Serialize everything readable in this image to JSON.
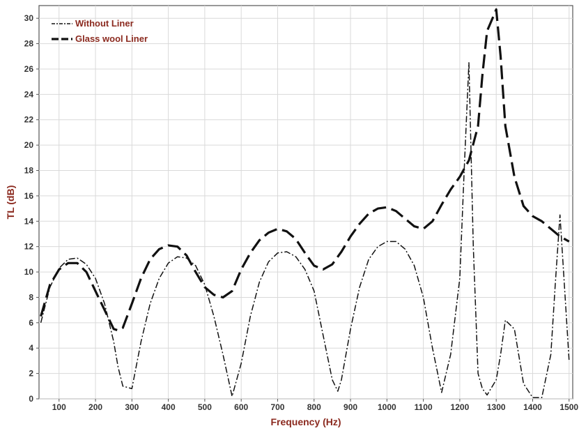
{
  "chart_data": {
    "type": "line",
    "title": "",
    "xlabel": "Frequency (Hz)",
    "ylabel": "TL (dB)",
    "xlim": [
      45,
      1510
    ],
    "ylim": [
      0,
      31
    ],
    "x_ticks": [
      100,
      200,
      300,
      400,
      500,
      600,
      700,
      800,
      900,
      1000,
      1100,
      1200,
      1300,
      1400,
      1500
    ],
    "y_ticks": [
      0,
      2,
      4,
      6,
      8,
      10,
      12,
      14,
      16,
      18,
      20,
      22,
      24,
      26,
      28,
      30
    ],
    "grid": true,
    "legend_position": "top-left",
    "series": [
      {
        "name": "Without Liner",
        "style": "dash-dot",
        "color": "#111111",
        "x": [
          50,
          75,
          100,
          125,
          150,
          175,
          200,
          225,
          250,
          262,
          275,
          300,
          325,
          350,
          375,
          400,
          425,
          450,
          475,
          500,
          525,
          550,
          575,
          600,
          625,
          650,
          675,
          700,
          725,
          750,
          775,
          800,
          825,
          850,
          865,
          875,
          900,
          925,
          950,
          975,
          1000,
          1025,
          1050,
          1075,
          1100,
          1125,
          1150,
          1175,
          1200,
          1212,
          1225,
          1237,
          1250,
          1262,
          1275,
          1300,
          1312,
          1325,
          1350,
          1375,
          1400,
          1425,
          1450,
          1462,
          1475,
          1487,
          1500
        ],
        "values": [
          6,
          8.8,
          10.3,
          11.0,
          11.1,
          10.6,
          9.5,
          7.5,
          4.5,
          2.5,
          1.0,
          0.8,
          4.5,
          7.5,
          9.5,
          10.7,
          11.2,
          11.1,
          10.5,
          9.0,
          6.5,
          3.5,
          0.2,
          2.8,
          6.5,
          9.2,
          10.8,
          11.5,
          11.6,
          11.2,
          10.2,
          8.5,
          5.0,
          1.5,
          0.6,
          1.5,
          5.5,
          8.8,
          11.0,
          12.0,
          12.4,
          12.4,
          11.8,
          10.5,
          8.0,
          4.0,
          0.5,
          3.5,
          9.5,
          18.0,
          26.5,
          12.0,
          2.0,
          0.8,
          0.3,
          1.5,
          3.5,
          6.2,
          5.5,
          1.2,
          0.1,
          0.1,
          3.5,
          9.0,
          14.5,
          9.0,
          3.0
        ]
      },
      {
        "name": "Glass wool Liner",
        "style": "long-dash",
        "color": "#111111",
        "x": [
          50,
          75,
          100,
          125,
          150,
          175,
          200,
          225,
          250,
          262,
          275,
          300,
          325,
          350,
          375,
          400,
          425,
          450,
          475,
          500,
          525,
          550,
          575,
          600,
          625,
          650,
          675,
          700,
          725,
          750,
          775,
          800,
          825,
          850,
          875,
          900,
          925,
          950,
          975,
          1000,
          1025,
          1050,
          1075,
          1100,
          1125,
          1150,
          1175,
          1200,
          1225,
          1250,
          1262,
          1275,
          1287,
          1300,
          1312,
          1325,
          1350,
          1375,
          1400,
          1425,
          1450,
          1475,
          1500
        ],
        "values": [
          6.5,
          9.0,
          10.2,
          10.7,
          10.7,
          10.0,
          8.5,
          7.0,
          5.5,
          5.4,
          5.6,
          7.5,
          9.5,
          11.0,
          11.8,
          12.1,
          12.0,
          11.3,
          10.0,
          8.8,
          8.2,
          8.0,
          8.5,
          10.2,
          11.5,
          12.5,
          13.1,
          13.4,
          13.2,
          12.6,
          11.5,
          10.5,
          10.2,
          10.6,
          11.6,
          12.8,
          13.8,
          14.6,
          15.0,
          15.1,
          14.8,
          14.2,
          13.6,
          13.4,
          14.0,
          15.3,
          16.5,
          17.5,
          18.8,
          21.5,
          25.5,
          29.0,
          29.8,
          30.7,
          27.0,
          21.5,
          17.5,
          15.2,
          14.4,
          14.0,
          13.4,
          12.8,
          12.4
        ]
      }
    ]
  }
}
